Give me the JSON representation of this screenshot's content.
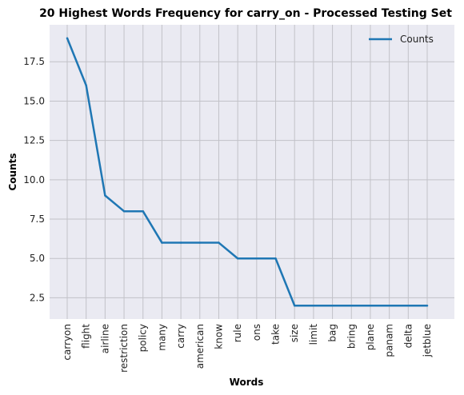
{
  "chart_data": {
    "type": "line",
    "title": "20 Highest Words Frequency for carry_on - Processed Testing Set",
    "xlabel": "Words",
    "ylabel": "Counts",
    "categories": [
      "carryon",
      "flight",
      "airline",
      "restriction",
      "policy",
      "many",
      "carry",
      "american",
      "know",
      "rule",
      "ons",
      "take",
      "size",
      "limit",
      "bag",
      "bring",
      "plane",
      "panam",
      "delta",
      "jetblue"
    ],
    "series": [
      {
        "name": "Counts",
        "values": [
          19,
          16,
          9,
          8,
          8,
          6,
          6,
          6,
          6,
          5,
          5,
          5,
          2,
          2,
          2,
          2,
          2,
          2,
          2,
          2
        ]
      }
    ],
    "yticks": [
      "2.5",
      "5.0",
      "7.5",
      "10.0",
      "12.5",
      "15.0",
      "17.5"
    ],
    "ytick_values": [
      2.5,
      5.0,
      7.5,
      10.0,
      12.5,
      15.0,
      17.5
    ],
    "ylim": [
      1.15,
      19.85
    ],
    "grid": true,
    "legend_position": "top-right",
    "colors": {
      "line": "#1f77b4",
      "plot_bg": "#eaeaf2",
      "grid": "#c2c2c8"
    }
  }
}
